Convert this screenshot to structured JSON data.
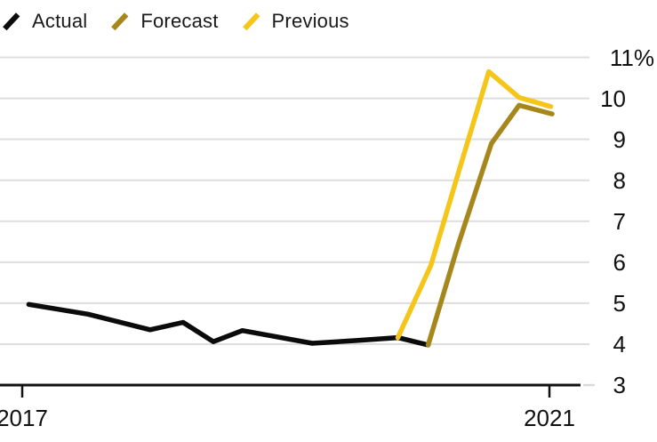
{
  "legend": {
    "items": [
      {
        "label": "Actual",
        "color": "#0b0b0b"
      },
      {
        "label": "Forecast",
        "color": "#a5871b"
      },
      {
        "label": "Previous",
        "color": "#f5c51a"
      }
    ]
  },
  "chart_data": {
    "type": "line",
    "title": "",
    "unit": "%",
    "grid": "horizontal",
    "legend_position": "top-left",
    "x_axis": {
      "range": [
        2016.83,
        2021.3
      ],
      "ticks": [
        {
          "value": 2017,
          "label": "2017"
        },
        {
          "value": 2021,
          "label": "2021"
        }
      ]
    },
    "y_axis": {
      "range": [
        3,
        11
      ],
      "gridlines": [
        3,
        4,
        5,
        6,
        7,
        8,
        9,
        10,
        11
      ],
      "labels": [
        {
          "value": 11,
          "label": "11%"
        },
        {
          "value": 10,
          "label": "10"
        },
        {
          "value": 9,
          "label": "9"
        },
        {
          "value": 8,
          "label": "8"
        },
        {
          "value": 7,
          "label": "7"
        },
        {
          "value": 6,
          "label": "6"
        },
        {
          "value": 5,
          "label": "5"
        },
        {
          "value": 4,
          "label": "4"
        },
        {
          "value": 3,
          "label": "3"
        }
      ]
    },
    "series": [
      {
        "name": "Actual",
        "color": "#0b0b0b",
        "points": [
          [
            2017.05,
            4.97
          ],
          [
            2017.5,
            4.73
          ],
          [
            2017.97,
            4.35
          ],
          [
            2018.22,
            4.53
          ],
          [
            2018.45,
            4.06
          ],
          [
            2018.67,
            4.33
          ],
          [
            2019.2,
            4.02
          ],
          [
            2019.55,
            4.09
          ],
          [
            2019.85,
            4.16
          ],
          [
            2020.08,
            3.98
          ]
        ]
      },
      {
        "name": "Forecast",
        "color": "#a5871b",
        "points": [
          [
            2020.08,
            3.98
          ],
          [
            2020.31,
            6.45
          ],
          [
            2020.56,
            8.9
          ],
          [
            2020.77,
            9.83
          ],
          [
            2021.02,
            9.62
          ]
        ]
      },
      {
        "name": "Previous",
        "color": "#f5c51a",
        "points": [
          [
            2019.85,
            4.16
          ],
          [
            2020.1,
            5.92
          ],
          [
            2020.32,
            8.3
          ],
          [
            2020.54,
            10.65
          ],
          [
            2020.77,
            10.02
          ],
          [
            2021.01,
            9.8
          ]
        ]
      }
    ]
  }
}
